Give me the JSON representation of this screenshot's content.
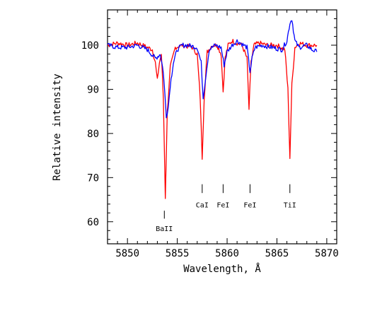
{
  "chart_data": {
    "type": "line",
    "xlabel": "Wavelength, Å",
    "ylabel": "Relative intensity",
    "xlim": [
      5848,
      5871
    ],
    "ylim": [
      55,
      108
    ],
    "x_ticks": [
      5850,
      5855,
      5860,
      5865,
      5870
    ],
    "y_ticks": [
      60,
      70,
      80,
      90,
      100
    ],
    "grid": false,
    "colors": {
      "red": "#ff0000",
      "blue": "#0000ff",
      "axis": "#000000"
    },
    "series": [
      {
        "color": "#ff0000",
        "x": [
          5848.0,
          5849.0,
          5850.0,
          5851.0,
          5852.0,
          5852.5,
          5852.8,
          5853.0,
          5853.2,
          5853.4,
          5853.6,
          5853.8,
          5854.0,
          5854.3,
          5854.8,
          5855.5,
          5856.5,
          5857.0,
          5857.3,
          5857.5,
          5857.7,
          5858.0,
          5858.5,
          5859.0,
          5859.4,
          5859.6,
          5859.8,
          5860.1,
          5860.5,
          5861.0,
          5861.5,
          5862.0,
          5862.2,
          5862.4,
          5862.7,
          5863.2,
          5864.0,
          5865.0,
          5865.8,
          5866.1,
          5866.3,
          5866.5,
          5866.8,
          5867.2,
          5868.0,
          5869.0
        ],
        "y": [
          100,
          100.5,
          100,
          100.5,
          99.5,
          99,
          96,
          92,
          96,
          98,
          88,
          65.5,
          85,
          95,
          99.5,
          100,
          99.5,
          98,
          88,
          74.5,
          88,
          98.5,
          100,
          100,
          98,
          89.5,
          97,
          100,
          101,
          100.5,
          100,
          97,
          85.5,
          96,
          100,
          100.5,
          100,
          100,
          99,
          90,
          74.5,
          91,
          99.5,
          100.5,
          100,
          100
        ]
      },
      {
        "color": "#0000ff",
        "x": [
          5848.0,
          5849.0,
          5850.0,
          5851.0,
          5852.0,
          5852.8,
          5853.3,
          5853.6,
          5853.9,
          5854.1,
          5854.3,
          5854.6,
          5855.0,
          5855.5,
          5856.0,
          5857.0,
          5857.4,
          5857.6,
          5857.8,
          5858.2,
          5858.8,
          5859.4,
          5859.7,
          5860.0,
          5860.5,
          5861.0,
          5862.0,
          5862.3,
          5862.5,
          5862.8,
          5863.5,
          5864.5,
          5865.5,
          5866.0,
          5866.3,
          5866.5,
          5866.8,
          5867.2,
          5868.0,
          5868.5,
          5869.0
        ],
        "y": [
          100,
          99.5,
          99.5,
          100,
          99,
          97,
          98,
          94,
          84,
          86,
          91,
          96,
          99,
          100,
          100,
          99.5,
          96,
          88,
          92,
          99,
          100,
          99.5,
          95.5,
          98.5,
          100,
          101,
          99.5,
          94,
          97,
          99.5,
          100,
          99.5,
          99,
          101,
          105,
          106,
          101,
          99.5,
          100,
          99,
          98.5
        ]
      }
    ],
    "line_markers": [
      {
        "label": "BaII",
        "x": 5853.7
      },
      {
        "label": "CaI",
        "x": 5857.5
      },
      {
        "label": "FeI",
        "x": 5859.6
      },
      {
        "label": "FeI",
        "x": 5862.3
      },
      {
        "label": "TiI",
        "x": 5866.3
      }
    ]
  }
}
